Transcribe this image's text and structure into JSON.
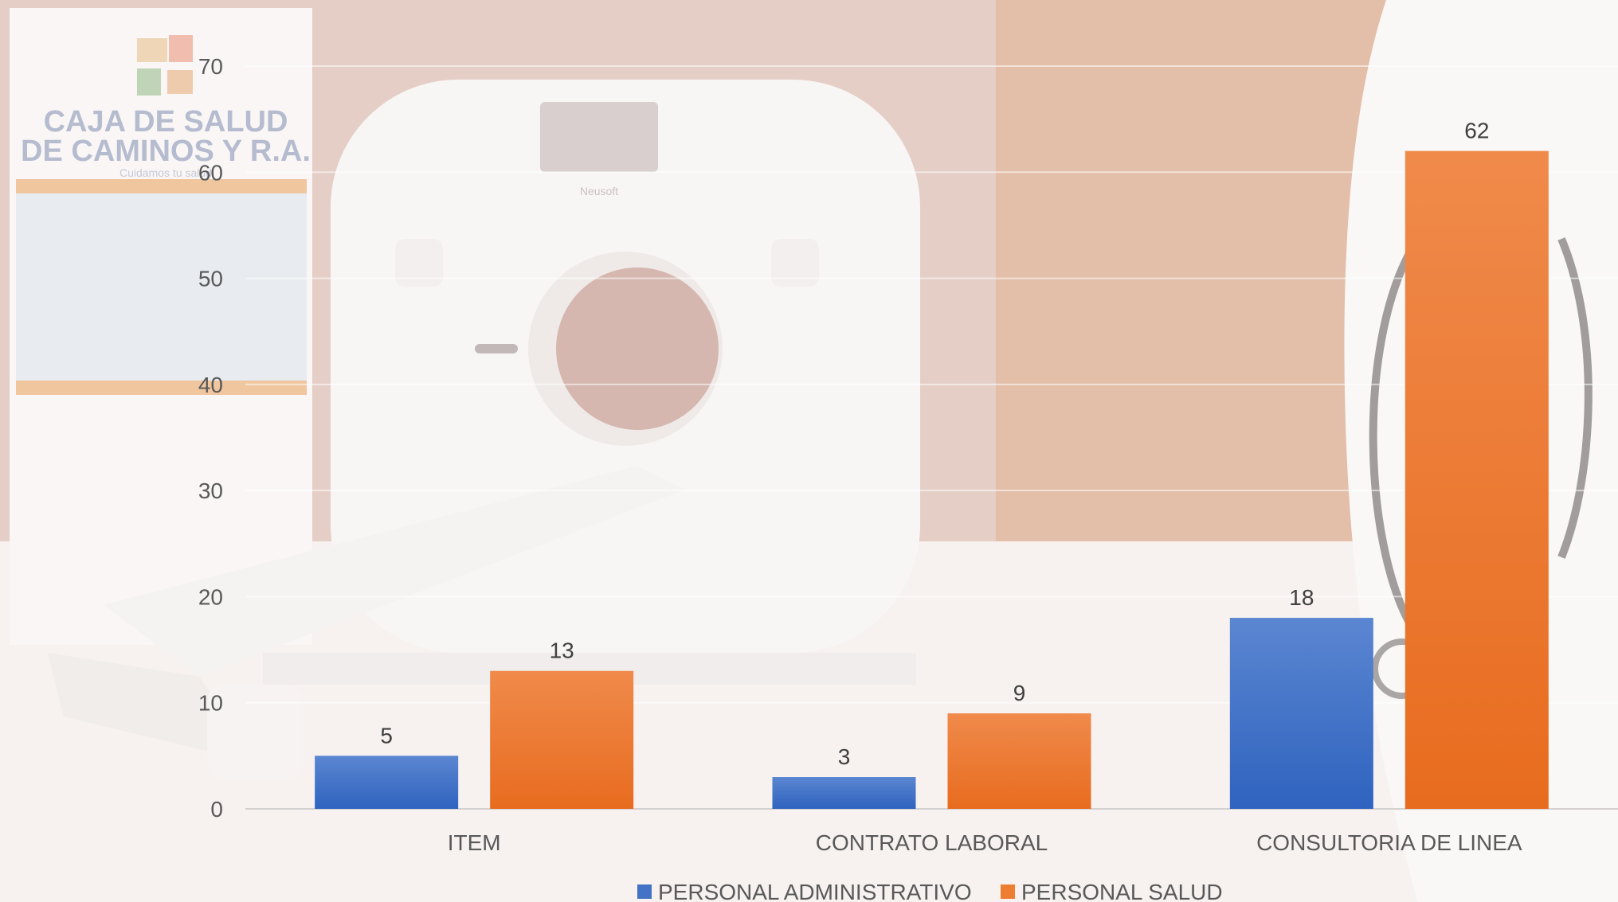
{
  "background": {
    "banner_line1": "CAJA DE SALUD",
    "banner_line2": "DE CAMINOS Y R.A.",
    "banner_tagline": "Cuidamos tu salud",
    "scanner_brand": "Neusoft",
    "colors": {
      "banner_text": "#9aa3bd",
      "banner_stripe": "#e8a96a",
      "wall": "#d8b09f",
      "cabinet": "#d9a383"
    }
  },
  "chart_data": {
    "type": "bar",
    "categories": [
      "ITEM",
      "CONTRATO LABORAL",
      "CONSULTORIA DE LINEA"
    ],
    "series": [
      {
        "name": "PERSONAL ADMINISTRATIVO",
        "values": [
          5,
          3,
          18
        ],
        "color": "#4472c4"
      },
      {
        "name": "PERSONAL SALUD",
        "values": [
          13,
          9,
          62
        ],
        "color": "#ed7d31"
      }
    ],
    "ylim": [
      0,
      70
    ],
    "yticks": [
      0,
      10,
      20,
      30,
      40,
      50,
      60,
      70
    ],
    "grid": true,
    "legend": "bottom-center",
    "data_labels": true
  }
}
